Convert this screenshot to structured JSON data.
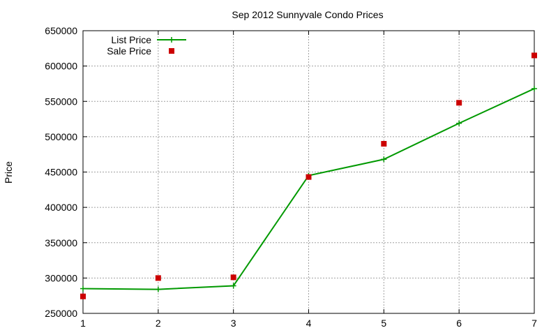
{
  "chart_data": {
    "type": "line",
    "title": "Sep 2012 Sunnyvale Condo Prices",
    "xlabel": "",
    "ylabel": "Price",
    "x": [
      1,
      2,
      3,
      4,
      5,
      6,
      7
    ],
    "xlim": [
      1,
      7
    ],
    "ylim": [
      250000,
      650000
    ],
    "xticks": [
      "1",
      "2",
      "3",
      "4",
      "5",
      "6",
      "7"
    ],
    "yticks": [
      "250000",
      "300000",
      "350000",
      "400000",
      "450000",
      "500000",
      "550000",
      "600000",
      "650000"
    ],
    "grid": true,
    "legend_position": "top-left",
    "series": [
      {
        "name": "List Price",
        "style": "line-with-plus-markers",
        "color": "#009900",
        "values": [
          285000,
          284000,
          289000,
          445000,
          468000,
          519000,
          568000
        ]
      },
      {
        "name": "Sale Price",
        "style": "square-markers",
        "color": "#cc0000",
        "values": [
          274000,
          300000,
          301000,
          443000,
          490000,
          548000,
          615000
        ]
      }
    ]
  }
}
